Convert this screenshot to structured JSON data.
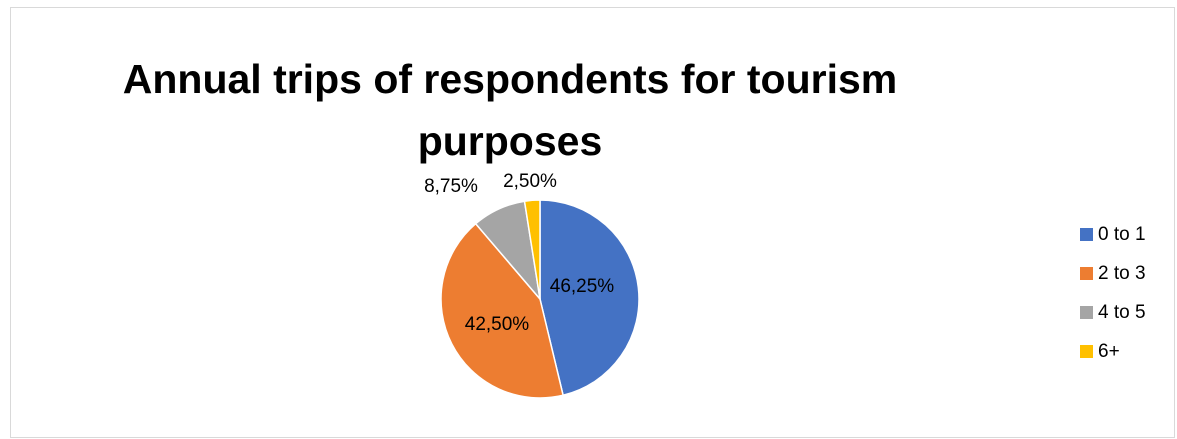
{
  "chart_data": {
    "type": "pie",
    "title_lines": [
      "Annual trips of respondents for tourism",
      "purposes"
    ],
    "categories": [
      "0 to 1",
      "2 to 3",
      "4 to 5",
      "6+"
    ],
    "values": [
      46.25,
      42.5,
      8.75,
      2.5
    ],
    "data_labels": [
      "46,25%",
      "42,50%",
      "8,75%",
      "2,50%"
    ],
    "colors": [
      "#4472c4",
      "#ed7d31",
      "#a5a5a5",
      "#ffc000"
    ],
    "start_angle": "12 o'clock",
    "direction": "clockwise",
    "legend_position": "right"
  }
}
